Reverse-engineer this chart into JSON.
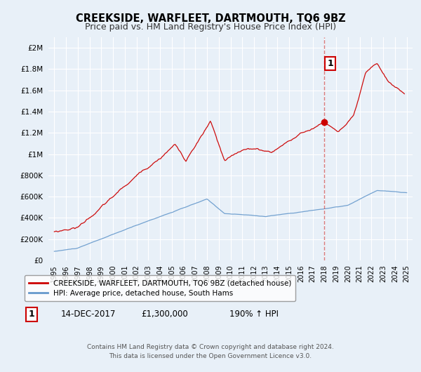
{
  "title": "CREEKSIDE, WARFLEET, DARTMOUTH, TQ6 9BZ",
  "subtitle": "Price paid vs. HM Land Registry's House Price Index (HPI)",
  "background_color": "#e8f0f8",
  "plot_bg_color": "#e8f0f8",
  "legend_label_red": "CREEKSIDE, WARFLEET, DARTMOUTH, TQ6 9BZ (detached house)",
  "legend_label_blue": "HPI: Average price, detached house, South Hams",
  "annotation_label": "1",
  "annotation_date": "14-DEC-2017",
  "annotation_price": "£1,300,000",
  "annotation_hpi": "190% ↑ HPI",
  "footer": "Contains HM Land Registry data © Crown copyright and database right 2024.\nThis data is licensed under the Open Government Licence v3.0.",
  "vline_x": 2018.0,
  "dot_x": 2017.97,
  "dot_y": 1300000,
  "ylim": [
    0,
    2100000
  ],
  "xlim": [
    1994.5,
    2025.5
  ],
  "red_color": "#cc0000",
  "blue_color": "#6699cc",
  "vline_color": "#cc4444"
}
